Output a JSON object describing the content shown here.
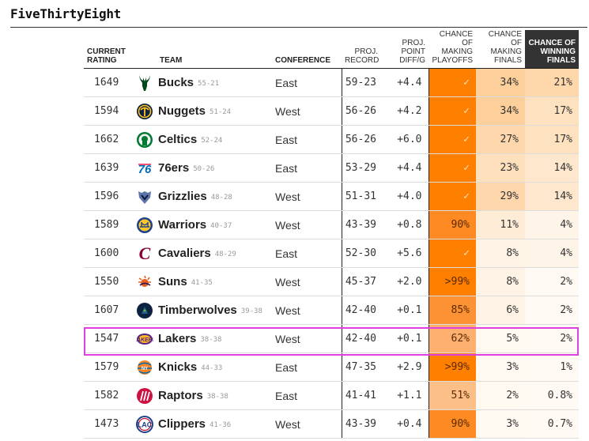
{
  "brand": "FiveThirtyEight",
  "headers": {
    "rating": [
      "CURRENT",
      "RATING"
    ],
    "team": "TEAM",
    "conference": "CONFERENCE",
    "record": [
      "PROJ.",
      "RECORD"
    ],
    "pd": [
      "PROJ.",
      "POINT",
      "DIFF/G"
    ],
    "playoffs": [
      "CHANCE",
      "OF",
      "MAKING",
      "PLAYOFFS"
    ],
    "finals": [
      "CHANCE",
      "OF",
      "MAKING",
      "FINALS"
    ],
    "win": [
      "CHANCE OF",
      "WINNING",
      "FINALS"
    ]
  },
  "colors": {
    "playoffs_check": "#ff7f00",
    "playoffs_90": "#fd8a22",
    "playoffs_85": "#fd9234",
    "playoffs_62": "#fdb06f",
    "playoffs_51": "#fdbf88",
    "highlight_border": "#e040e0"
  },
  "rows": [
    {
      "rating": "1649",
      "team": "Bucks",
      "team_record": "55-21",
      "logo": "deer-icon",
      "conference": "East",
      "record": "59-23",
      "pd": "+4.4",
      "playoffs": "✓",
      "finals": "34%",
      "win": "21%"
    },
    {
      "rating": "1594",
      "team": "Nuggets",
      "team_record": "51-24",
      "logo": "pickaxe-icon",
      "conference": "West",
      "record": "56-26",
      "pd": "+4.2",
      "playoffs": "✓",
      "finals": "34%",
      "win": "17%"
    },
    {
      "rating": "1662",
      "team": "Celtics",
      "team_record": "52-24",
      "logo": "leprechaun-icon",
      "conference": "East",
      "record": "56-26",
      "pd": "+6.0",
      "playoffs": "✓",
      "finals": "27%",
      "win": "17%"
    },
    {
      "rating": "1639",
      "team": "76ers",
      "team_record": "50-26",
      "logo": "76-icon",
      "conference": "East",
      "record": "53-29",
      "pd": "+4.4",
      "playoffs": "✓",
      "finals": "23%",
      "win": "14%"
    },
    {
      "rating": "1596",
      "team": "Grizzlies",
      "team_record": "48-28",
      "logo": "bear-icon",
      "conference": "West",
      "record": "51-31",
      "pd": "+4.0",
      "playoffs": "✓",
      "finals": "29%",
      "win": "14%"
    },
    {
      "rating": "1589",
      "team": "Warriors",
      "team_record": "40-37",
      "logo": "bridge-icon",
      "conference": "West",
      "record": "43-39",
      "pd": "+0.8",
      "playoffs": "90%",
      "finals": "11%",
      "win": "4%"
    },
    {
      "rating": "1600",
      "team": "Cavaliers",
      "team_record": "48-29",
      "logo": "c-icon",
      "conference": "East",
      "record": "52-30",
      "pd": "+5.6",
      "playoffs": "✓",
      "finals": "8%",
      "win": "4%"
    },
    {
      "rating": "1550",
      "team": "Suns",
      "team_record": "41-35",
      "logo": "sun-icon",
      "conference": "West",
      "record": "45-37",
      "pd": "+2.0",
      "playoffs": ">99%",
      "finals": "8%",
      "win": "2%"
    },
    {
      "rating": "1607",
      "team": "Timberwolves",
      "team_record": "39-38",
      "logo": "wolf-icon",
      "conference": "West",
      "record": "42-40",
      "pd": "+0.1",
      "playoffs": "85%",
      "finals": "6%",
      "win": "2%"
    },
    {
      "rating": "1547",
      "team": "Lakers",
      "team_record": "38-38",
      "logo": "lakers-icon",
      "conference": "West",
      "record": "42-40",
      "pd": "+0.1",
      "playoffs": "62%",
      "finals": "5%",
      "win": "2%"
    },
    {
      "rating": "1579",
      "team": "Knicks",
      "team_record": "44-33",
      "logo": "knicks-icon",
      "conference": "East",
      "record": "47-35",
      "pd": "+2.9",
      "playoffs": ">99%",
      "finals": "3%",
      "win": "1%"
    },
    {
      "rating": "1582",
      "team": "Raptors",
      "team_record": "38-38",
      "logo": "claw-icon",
      "conference": "East",
      "record": "41-41",
      "pd": "+1.1",
      "playoffs": "51%",
      "finals": "2%",
      "win": "0.8%"
    },
    {
      "rating": "1473",
      "team": "Clippers",
      "team_record": "41-36",
      "logo": "clippers-icon",
      "conference": "West",
      "record": "43-39",
      "pd": "+0.4",
      "playoffs": "90%",
      "finals": "3%",
      "win": "0.7%"
    }
  ]
}
